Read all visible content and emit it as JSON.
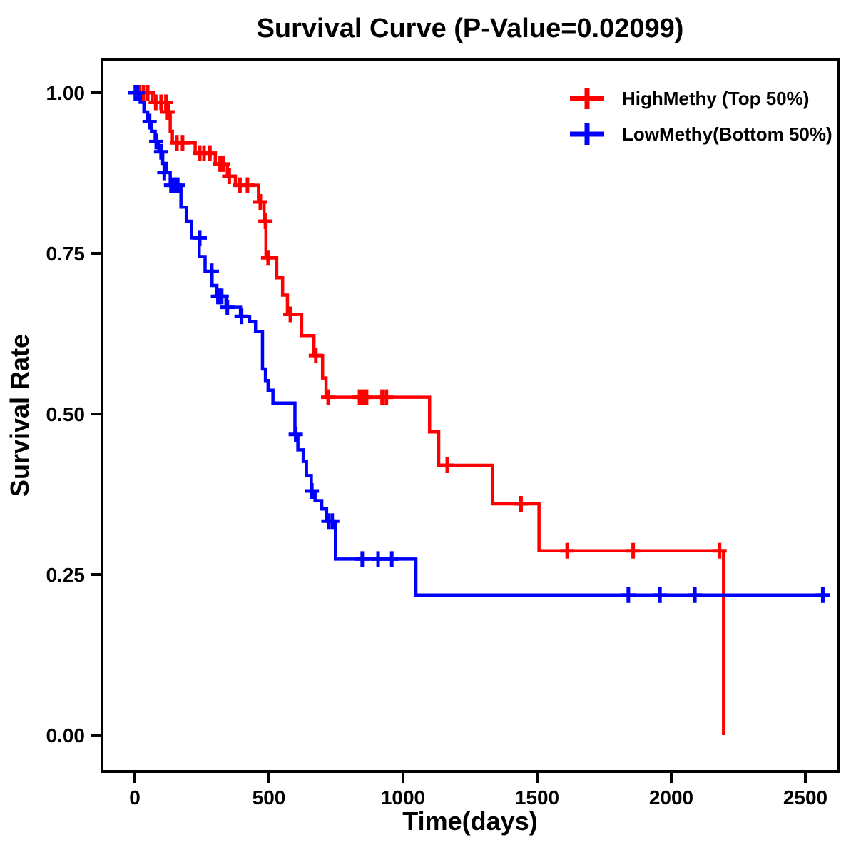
{
  "title": "Survival Curve (P-Value=0.02099)",
  "p_value": "0.02099",
  "axes": {
    "x": {
      "label": "Time(days)",
      "tick_values": [
        0,
        500,
        1000,
        1500,
        2000,
        2500
      ],
      "tick_labels": [
        "0",
        "500",
        "1000",
        "1500",
        "2000",
        "2500"
      ],
      "range": [
        0,
        2635
      ]
    },
    "y": {
      "label": "Survival Rate",
      "tick_values": [
        1.0,
        0.75,
        0.5,
        0.25,
        0.0
      ],
      "tick_labels": [
        "1.00",
        "0.75",
        "0.50",
        "0.25",
        "0.00"
      ],
      "range": [
        0,
        1
      ]
    }
  },
  "legend": {
    "items": [
      {
        "label": "HighMethy (Top 50%)",
        "color": "#FF0000"
      },
      {
        "label": "LowMethy(Bottom 50%)",
        "color": "#0000FF"
      }
    ]
  },
  "chart_data": {
    "type": "line",
    "subtype": "kaplan-meier-step",
    "title": "Survival Curve (P-Value=0.02099)",
    "xlabel": "Time(days)",
    "ylabel": "Survival Rate",
    "xlim": [
      0,
      2635
    ],
    "ylim": [
      0,
      1
    ],
    "grid": false,
    "legend_position": "top-right",
    "series": [
      {
        "id": "highmethy",
        "name": "HighMethy (Top 50%)",
        "color": "#FF0000",
        "steps": [
          [
            0,
            1.0
          ],
          [
            65,
            0.985
          ],
          [
            125,
            0.97
          ],
          [
            132,
            0.94
          ],
          [
            140,
            0.922
          ],
          [
            225,
            0.906
          ],
          [
            300,
            0.889
          ],
          [
            345,
            0.87
          ],
          [
            375,
            0.856
          ],
          [
            461,
            0.83
          ],
          [
            482,
            0.8
          ],
          [
            489,
            0.743
          ],
          [
            529,
            0.712
          ],
          [
            551,
            0.685
          ],
          [
            569,
            0.655
          ],
          [
            622,
            0.622
          ],
          [
            668,
            0.591
          ],
          [
            700,
            0.556
          ],
          [
            713,
            0.526
          ],
          [
            1099,
            0.472
          ],
          [
            1133,
            0.42
          ],
          [
            1333,
            0.36
          ],
          [
            1507,
            0.287
          ],
          [
            2195,
            0.0
          ]
        ],
        "censors": [
          [
            15,
            1.0
          ],
          [
            32,
            1.0
          ],
          [
            48,
            1.0
          ],
          [
            78,
            0.985
          ],
          [
            98,
            0.985
          ],
          [
            116,
            0.985
          ],
          [
            122,
            0.97
          ],
          [
            157,
            0.922
          ],
          [
            178,
            0.922
          ],
          [
            242,
            0.906
          ],
          [
            258,
            0.906
          ],
          [
            280,
            0.906
          ],
          [
            318,
            0.889
          ],
          [
            330,
            0.889
          ],
          [
            352,
            0.87
          ],
          [
            392,
            0.856
          ],
          [
            420,
            0.856
          ],
          [
            468,
            0.83
          ],
          [
            487,
            0.8
          ],
          [
            497,
            0.743
          ],
          [
            580,
            0.655
          ],
          [
            675,
            0.591
          ],
          [
            721,
            0.526
          ],
          [
            838,
            0.526
          ],
          [
            851,
            0.526
          ],
          [
            864,
            0.526
          ],
          [
            922,
            0.526
          ],
          [
            938,
            0.526
          ],
          [
            1165,
            0.42
          ],
          [
            1440,
            0.36
          ],
          [
            1612,
            0.287
          ],
          [
            1858,
            0.287
          ],
          [
            2180,
            0.287
          ]
        ],
        "end_day": 2195,
        "ends_at_zero": true
      },
      {
        "id": "lowmethy",
        "name": "LowMethy(Bottom 50%)",
        "color": "#0000FF",
        "steps": [
          [
            0,
            1.0
          ],
          [
            20,
            0.985
          ],
          [
            34,
            0.97
          ],
          [
            48,
            0.955
          ],
          [
            62,
            0.94
          ],
          [
            76,
            0.924
          ],
          [
            90,
            0.908
          ],
          [
            104,
            0.89
          ],
          [
            118,
            0.876
          ],
          [
            132,
            0.856
          ],
          [
            172,
            0.822
          ],
          [
            192,
            0.8
          ],
          [
            212,
            0.774
          ],
          [
            240,
            0.745
          ],
          [
            262,
            0.722
          ],
          [
            288,
            0.7
          ],
          [
            306,
            0.683
          ],
          [
            340,
            0.666
          ],
          [
            394,
            0.652
          ],
          [
            428,
            0.644
          ],
          [
            450,
            0.628
          ],
          [
            476,
            0.57
          ],
          [
            487,
            0.552
          ],
          [
            497,
            0.537
          ],
          [
            515,
            0.517
          ],
          [
            597,
            0.468
          ],
          [
            608,
            0.444
          ],
          [
            628,
            0.426
          ],
          [
            640,
            0.404
          ],
          [
            658,
            0.38
          ],
          [
            672,
            0.365
          ],
          [
            697,
            0.352
          ],
          [
            715,
            0.333
          ],
          [
            748,
            0.274
          ],
          [
            1048,
            0.218
          ]
        ],
        "censors": [
          [
            2,
            1.0
          ],
          [
            10,
            1.0
          ],
          [
            55,
            0.955
          ],
          [
            80,
            0.924
          ],
          [
            98,
            0.908
          ],
          [
            110,
            0.876
          ],
          [
            135,
            0.856
          ],
          [
            148,
            0.856
          ],
          [
            160,
            0.856
          ],
          [
            242,
            0.774
          ],
          [
            287,
            0.722
          ],
          [
            310,
            0.683
          ],
          [
            317,
            0.683
          ],
          [
            324,
            0.683
          ],
          [
            345,
            0.666
          ],
          [
            398,
            0.652
          ],
          [
            600,
            0.468
          ],
          [
            660,
            0.38
          ],
          [
            722,
            0.333
          ],
          [
            736,
            0.333
          ],
          [
            848,
            0.274
          ],
          [
            907,
            0.274
          ],
          [
            958,
            0.274
          ],
          [
            1840,
            0.218
          ],
          [
            1958,
            0.218
          ],
          [
            2088,
            0.218
          ],
          [
            2565,
            0.218
          ]
        ],
        "end_day": 2580,
        "ends_at_zero": false
      }
    ]
  }
}
